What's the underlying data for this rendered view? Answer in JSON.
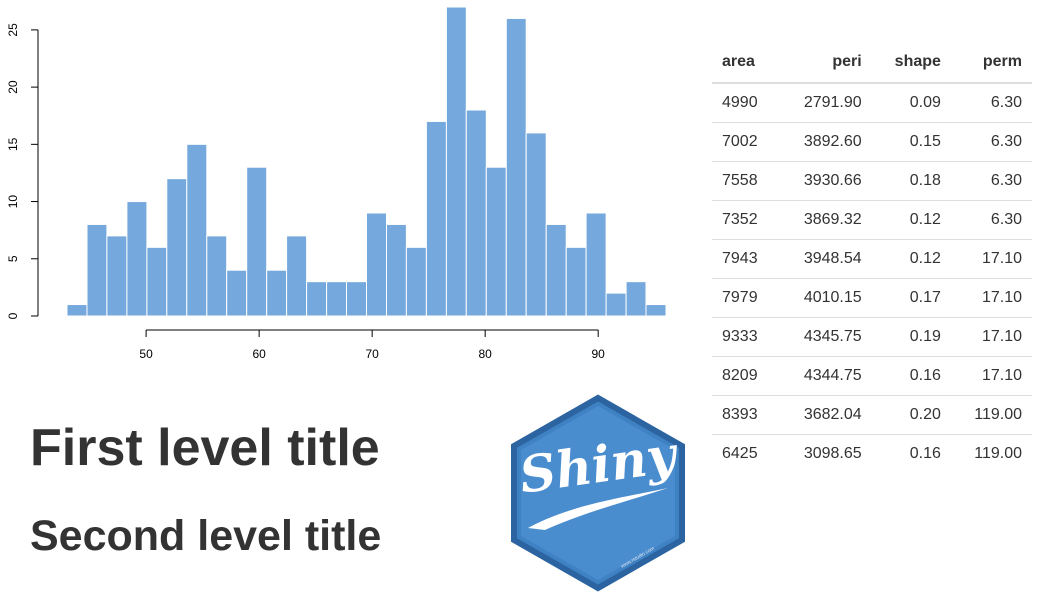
{
  "chart_data": {
    "type": "histogram",
    "bins": [
      43,
      44.77,
      46.53,
      48.3,
      50.07,
      51.83,
      53.6,
      55.37,
      57.13,
      58.9,
      60.67,
      62.43,
      64.2,
      65.97,
      67.73,
      69.5,
      71.27,
      73.03,
      74.8,
      76.57,
      78.33,
      80.1,
      81.87,
      83.63,
      85.4,
      87.17,
      88.93,
      90.7,
      92.47,
      94.23,
      96
    ],
    "values": [
      1,
      8,
      7,
      10,
      6,
      12,
      15,
      7,
      4,
      13,
      4,
      7,
      3,
      3,
      3,
      9,
      8,
      6,
      17,
      27,
      18,
      13,
      26,
      16,
      8,
      6,
      9,
      2,
      3,
      1
    ],
    "color": "#75a8dc",
    "xlim": [
      43,
      96
    ],
    "xticks": [
      50,
      60,
      70,
      80,
      90
    ],
    "ylim": [
      0,
      27
    ],
    "yticks": [
      0,
      5,
      10,
      15,
      20,
      25
    ]
  },
  "table": {
    "header": [
      "area",
      "peri",
      "shape",
      "perm"
    ],
    "rows": [
      [
        "4990",
        "2791.90",
        "0.09",
        "6.30"
      ],
      [
        "7002",
        "3892.60",
        "0.15",
        "6.30"
      ],
      [
        "7558",
        "3930.66",
        "0.18",
        "6.30"
      ],
      [
        "7352",
        "3869.32",
        "0.12",
        "6.30"
      ],
      [
        "7943",
        "3948.54",
        "0.12",
        "17.10"
      ],
      [
        "7979",
        "4010.15",
        "0.17",
        "17.10"
      ],
      [
        "9333",
        "4345.75",
        "0.19",
        "17.10"
      ],
      [
        "8209",
        "4344.75",
        "0.16",
        "17.10"
      ],
      [
        "8393",
        "3682.04",
        "0.20",
        "119.00"
      ],
      [
        "6425",
        "3098.65",
        "0.16",
        "119.00"
      ]
    ]
  },
  "headings": {
    "h1": "First level title",
    "h2": "Second level title"
  },
  "logo": {
    "text": "Shiny",
    "url": "www.rstudio.com"
  }
}
